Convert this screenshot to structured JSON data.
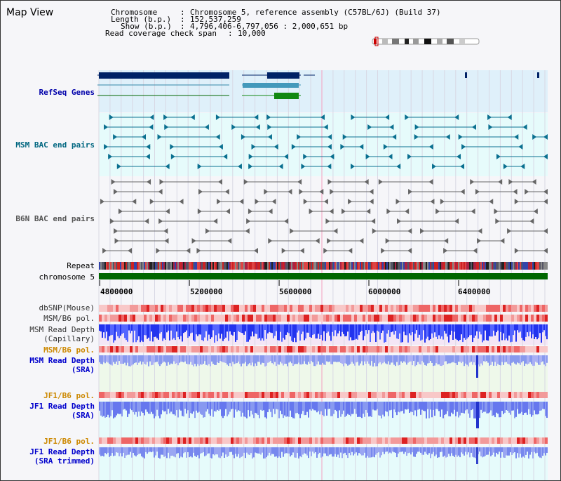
{
  "header": {
    "title": "Map View",
    "info_lines": [
      {
        "label": "Chromosome",
        "value": "Chromosome 5, reference assembly (C57BL/6J) (Build 37)"
      },
      {
        "label": "Length (b.p.)",
        "value": "152,537,259"
      },
      {
        "label": "Show (b.p.)",
        "value": "4,796,406-6,797,056 : 2,000,651 bp"
      },
      {
        "label": "Read coverage check span",
        "value": "10,000"
      }
    ]
  },
  "tracks": {
    "refseq": {
      "label": "RefSeq Genes",
      "color": "#0000aa"
    },
    "msm_bac": {
      "label": "MSM BAC end pairs",
      "color": "#006680"
    },
    "b6n_bac": {
      "label": "B6N BAC end pairs",
      "color": "#555555"
    },
    "repeat": {
      "label": "Repeat"
    },
    "chromosome": {
      "label": "chromosome 5"
    },
    "dbsnp": {
      "label": "dbSNP(Mouse)"
    },
    "msm_b6_pol_1": {
      "label": "MSM/B6 pol."
    },
    "msm_read_depth_cap": {
      "label": "MSM Read Depth\n(Capillary)"
    },
    "msm_b6_pol_2": {
      "label": "MSM/B6 pol.",
      "color": "#cc8800"
    },
    "msm_read_depth_sra": {
      "label": "MSM Read Depth\n(SRA)",
      "color": "#0000cc"
    },
    "jf1_b6_pol_1": {
      "label": "JF1/B6 pol.",
      "color": "#cc8800"
    },
    "jf1_read_depth_sra": {
      "label": "JF1 Read Depth\n(SRA)",
      "color": "#0000cc"
    },
    "jf1_b6_pol_2": {
      "label": "JF1/B6 pol.",
      "color": "#cc8800"
    },
    "jf1_read_depth_trim": {
      "label": "JF1 Read Depth\n(SRA trimmed)",
      "color": "#0000cc"
    }
  },
  "scale": {
    "tick_labels": [
      "4800000",
      "5200000",
      "5600000",
      "6000000",
      "6400000"
    ],
    "tick_values": [
      4800000,
      5200000,
      5600000,
      6000000,
      6400000
    ],
    "range": [
      4796406,
      6797056
    ]
  }
}
